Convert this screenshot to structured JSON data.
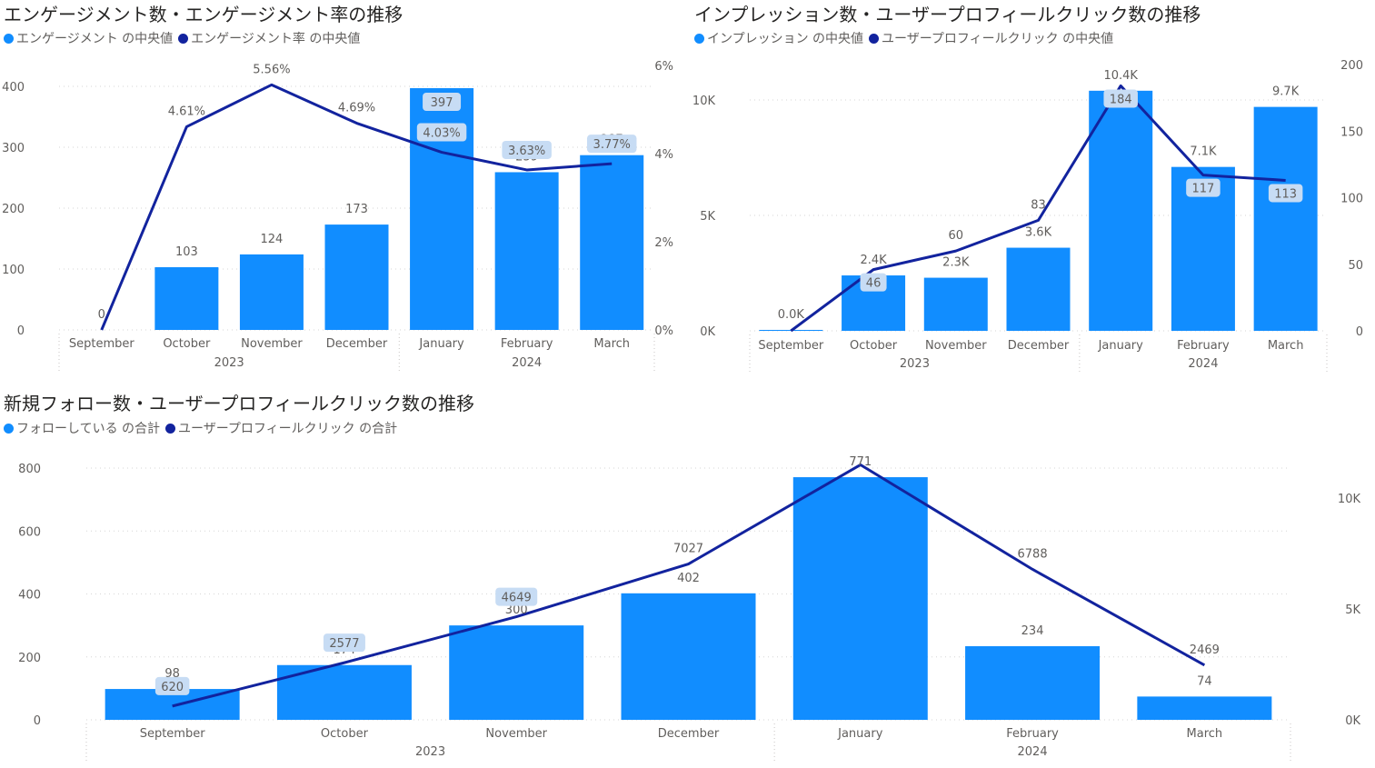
{
  "colors": {
    "bar": "#118DFF",
    "line": "#12239E"
  },
  "chart_data": [
    {
      "id": "engagement",
      "type": "bar-line-combo",
      "title": "エンゲージメント数・エンゲージメント率の推移",
      "legend": [
        {
          "name": "エンゲージメント の中央値",
          "color": "#118DFF"
        },
        {
          "name": "エンゲージメント率 の中央値",
          "color": "#12239E"
        }
      ],
      "categories": [
        "September",
        "October",
        "November",
        "December",
        "January",
        "February",
        "March"
      ],
      "year_groups": [
        {
          "label": "2023",
          "count": 4
        },
        {
          "label": "2024",
          "count": 3
        }
      ],
      "bars": {
        "name": "エンゲージメント の中央値",
        "values": [
          0,
          103,
          124,
          173,
          397,
          259,
          287
        ],
        "labels": [
          "0",
          "103",
          "124",
          "173",
          "397",
          "259",
          "287"
        ]
      },
      "line": {
        "name": "エンゲージメント率 の中央値",
        "values": [
          0,
          4.61,
          5.56,
          4.69,
          4.03,
          3.63,
          3.77
        ],
        "labels": [
          "",
          "4.61%",
          "5.56%",
          "4.69%",
          "4.03%",
          "3.63%",
          "3.77%"
        ]
      },
      "y_left": {
        "ticks": [
          0,
          100,
          200,
          300,
          400
        ],
        "labels": [
          "0",
          "100",
          "200",
          "300",
          "400"
        ],
        "max": 440
      },
      "y_right": {
        "ticks": [
          0,
          2,
          4,
          6
        ],
        "labels": [
          "0%",
          "2%",
          "4%",
          "6%"
        ],
        "max": 6
      }
    },
    {
      "id": "impressions",
      "type": "bar-line-combo",
      "title": "インプレッション数・ユーザープロフィールクリック数の推移",
      "legend": [
        {
          "name": "インプレッション の中央値",
          "color": "#118DFF"
        },
        {
          "name": "ユーザープロフィールクリック の中央値",
          "color": "#12239E"
        }
      ],
      "categories": [
        "September",
        "October",
        "November",
        "December",
        "January",
        "February",
        "March"
      ],
      "year_groups": [
        {
          "label": "2023",
          "count": 4
        },
        {
          "label": "2024",
          "count": 3
        }
      ],
      "bars": {
        "name": "インプレッション の中央値",
        "values": [
          40,
          2400,
          2300,
          3600,
          10400,
          7100,
          9700
        ],
        "labels": [
          "0.0K",
          "2.4K",
          "2.3K",
          "3.6K",
          "10.4K",
          "7.1K",
          "9.7K"
        ]
      },
      "line": {
        "name": "ユーザープロフィールクリック の中央値",
        "values": [
          0,
          46,
          60,
          83,
          184,
          117,
          113
        ],
        "labels": [
          "",
          "46",
          "60",
          "83",
          "184",
          "117",
          "113"
        ]
      },
      "y_left": {
        "ticks": [
          0,
          5000,
          10000
        ],
        "labels": [
          "0K",
          "5K",
          "10K"
        ],
        "max": 11500
      },
      "y_right": {
        "ticks": [
          0,
          50,
          100,
          150,
          200
        ],
        "labels": [
          "0",
          "50",
          "100",
          "150",
          "200"
        ],
        "max": 200
      }
    },
    {
      "id": "follows",
      "type": "bar-line-combo",
      "title": "新規フォロー数・ユーザープロフィールクリック数の推移",
      "legend": [
        {
          "name": "フォローしている の合計",
          "color": "#118DFF"
        },
        {
          "name": "ユーザープロフィールクリック の合計",
          "color": "#12239E"
        }
      ],
      "categories": [
        "September",
        "October",
        "November",
        "December",
        "January",
        "February",
        "March"
      ],
      "year_groups": [
        {
          "label": "2023",
          "count": 4
        },
        {
          "label": "2024",
          "count": 3
        }
      ],
      "bars": {
        "name": "フォローしている の合計",
        "values": [
          98,
          174,
          300,
          402,
          771,
          234,
          74
        ],
        "labels": [
          "98",
          "174",
          "300",
          "402",
          "771",
          "234",
          "74"
        ]
      },
      "line": {
        "name": "ユーザープロフィールクリック の合計",
        "values": [
          620,
          2577,
          4649,
          7027,
          11500,
          6788,
          2469
        ],
        "labels": [
          "620",
          "2577",
          "4649",
          "7027",
          "",
          "6788",
          "2469"
        ]
      },
      "y_left": {
        "ticks": [
          0,
          200,
          400,
          600,
          800
        ],
        "labels": [
          "0",
          "200",
          "400",
          "600",
          "800"
        ],
        "max": 820
      },
      "y_right": {
        "ticks": [
          0,
          5000,
          10000
        ],
        "labels": [
          "0K",
          "5K",
          "10K"
        ],
        "max": 12000
      }
    }
  ]
}
